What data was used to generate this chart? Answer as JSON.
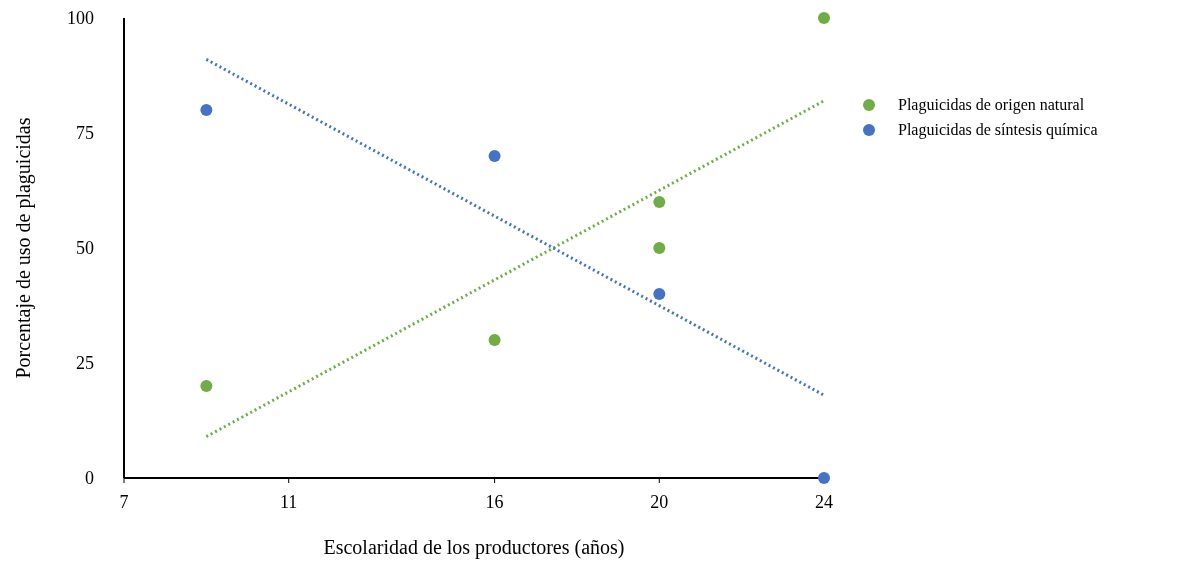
{
  "chart_data": {
    "type": "scatter",
    "xlabel": "Escolaridad de los productores (años)",
    "ylabel": "Porcentaje de uso de plaguicidas",
    "xlim": [
      7,
      24
    ],
    "xticks": [
      7,
      11,
      16,
      20,
      24
    ],
    "ylim": [
      0,
      100
    ],
    "yticks": [
      0,
      25,
      50,
      75,
      100
    ],
    "grid": false,
    "legend": "right",
    "marker": "circle",
    "series": [
      {
        "name": "Plaguicidas de origen natural",
        "color": "#70ad47",
        "x": [
          9,
          16,
          20,
          20,
          24
        ],
        "values": [
          20,
          30,
          60,
          50,
          100
        ]
      },
      {
        "name": "Plaguicidas de síntesis química",
        "color": "#4472c4",
        "x": [
          9,
          16,
          20,
          24
        ],
        "values": [
          80,
          70,
          40,
          0
        ]
      },
      {
        "type": "line",
        "marker": "none",
        "line_style": "dotted",
        "color": "#70ad47",
        "x": [
          9,
          24
        ],
        "values": [
          9,
          82
        ]
      },
      {
        "type": "line",
        "marker": "none",
        "line_style": "dotted",
        "color": "#4472c4",
        "x": [
          9,
          24
        ],
        "values": [
          91,
          18
        ]
      }
    ]
  }
}
